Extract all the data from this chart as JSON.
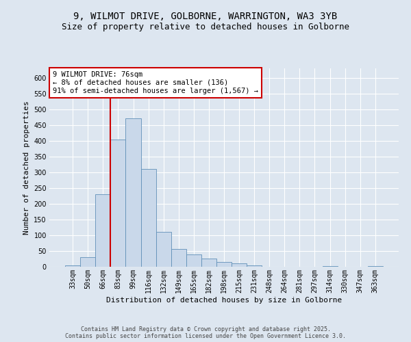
{
  "title1": "9, WILMOT DRIVE, GOLBORNE, WARRINGTON, WA3 3YB",
  "title2": "Size of property relative to detached houses in Golborne",
  "xlabel": "Distribution of detached houses by size in Golborne",
  "ylabel": "Number of detached properties",
  "bin_labels": [
    "33sqm",
    "50sqm",
    "66sqm",
    "83sqm",
    "99sqm",
    "116sqm",
    "132sqm",
    "149sqm",
    "165sqm",
    "182sqm",
    "198sqm",
    "215sqm",
    "231sqm",
    "248sqm",
    "264sqm",
    "281sqm",
    "297sqm",
    "314sqm",
    "330sqm",
    "347sqm",
    "363sqm"
  ],
  "bar_values": [
    5,
    30,
    230,
    405,
    472,
    311,
    110,
    57,
    40,
    25,
    15,
    10,
    5,
    0,
    0,
    0,
    0,
    2,
    0,
    0,
    3
  ],
  "bar_color": "#c9d8ea",
  "bar_edge_color": "#6090b8",
  "vline_color": "#cc0000",
  "annotation_text": "9 WILMOT DRIVE: 76sqm\n← 8% of detached houses are smaller (136)\n91% of semi-detached houses are larger (1,567) →",
  "annotation_box_color": "white",
  "annotation_box_edge": "#cc0000",
  "ylim": [
    0,
    630
  ],
  "yticks": [
    0,
    50,
    100,
    150,
    200,
    250,
    300,
    350,
    400,
    450,
    500,
    550,
    600
  ],
  "bg_color": "#dde6f0",
  "plot_bg_color": "#dde6f0",
  "footer_text": "Contains HM Land Registry data © Crown copyright and database right 2025.\nContains public sector information licensed under the Open Government Licence 3.0.",
  "title_fontsize": 10,
  "subtitle_fontsize": 9,
  "axis_label_fontsize": 8,
  "tick_fontsize": 7,
  "footer_fontsize": 6,
  "annotation_fontsize": 7.5,
  "vline_pos": 2.5
}
